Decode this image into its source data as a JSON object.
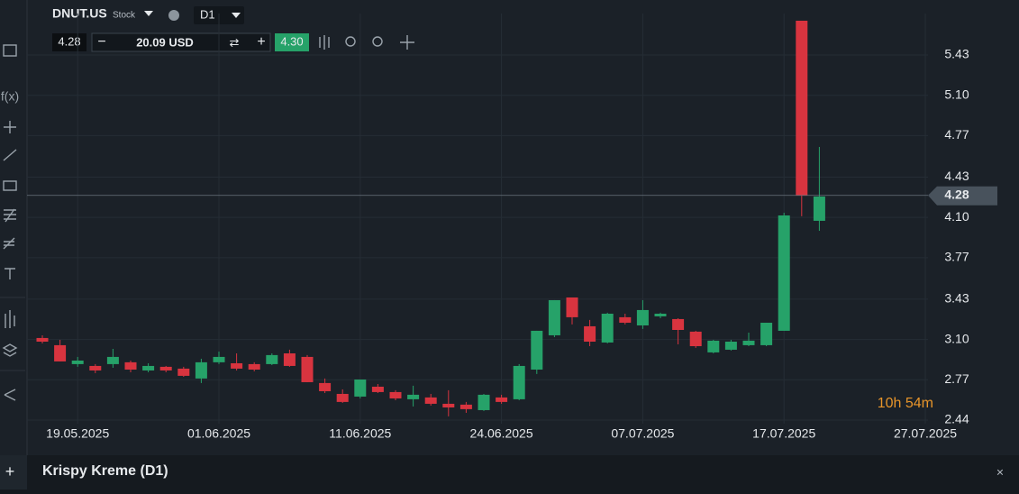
{
  "header": {
    "symbol": "DNUT.US",
    "asset_type": "Stock",
    "timeframe": "D1",
    "bid": "4.28",
    "quantity": "20.09 USD",
    "ask": "4.30"
  },
  "footer": {
    "title": "Krispy Kreme (D1)"
  },
  "chart_data": {
    "type": "candlestick",
    "open": [
      3.112,
      3.053,
      2.898,
      2.883,
      2.898,
      2.913,
      2.846,
      2.876,
      2.861,
      2.78,
      2.913,
      2.905,
      2.898,
      2.898,
      2.986,
      2.957,
      2.743,
      2.654,
      2.632,
      2.713,
      2.669,
      2.61,
      2.625,
      2.573,
      2.566,
      2.521,
      2.625,
      2.61,
      2.853,
      3.134,
      3.444,
      3.208,
      3.075,
      3.282,
      3.215,
      3.289,
      3.267,
      3.164,
      2.994,
      3.016,
      3.053,
      3.053,
      3.171,
      5.711,
      4.072
    ],
    "high": [
      3.134,
      3.097,
      2.957,
      2.898,
      3.023,
      2.927,
      2.905,
      2.883,
      2.876,
      2.942,
      3.001,
      2.986,
      2.913,
      2.986,
      3.016,
      2.972,
      2.78,
      2.691,
      2.772,
      2.735,
      2.684,
      2.721,
      2.654,
      2.684,
      2.588,
      2.654,
      2.647,
      2.898,
      3.171,
      3.422,
      3.444,
      3.26,
      3.319,
      3.311,
      3.422,
      3.319,
      3.274,
      3.171,
      3.097,
      3.097,
      3.156,
      3.237,
      4.138,
      5.711,
      4.677
    ],
    "low": [
      3.067,
      2.92,
      2.876,
      2.824,
      2.868,
      2.831,
      2.831,
      2.831,
      2.794,
      2.743,
      2.898,
      2.846,
      2.839,
      2.89,
      2.876,
      2.75,
      2.661,
      2.58,
      2.617,
      2.661,
      2.602,
      2.551,
      2.558,
      2.47,
      2.499,
      2.514,
      2.573,
      2.602,
      2.817,
      3.119,
      3.223,
      3.045,
      3.068,
      3.223,
      3.186,
      3.274,
      3.06,
      3.031,
      2.986,
      3.009,
      3.045,
      3.045,
      3.171,
      4.109,
      3.99
    ],
    "close": [
      3.082,
      2.92,
      2.927,
      2.846,
      2.957,
      2.853,
      2.883,
      2.846,
      2.802,
      2.913,
      2.957,
      2.861,
      2.853,
      2.972,
      2.883,
      2.75,
      2.676,
      2.588,
      2.772,
      2.669,
      2.617,
      2.647,
      2.573,
      2.543,
      2.529,
      2.647,
      2.588,
      2.883,
      3.171,
      3.422,
      3.282,
      3.082,
      3.311,
      3.237,
      3.341,
      3.311,
      3.178,
      3.045,
      3.09,
      3.082,
      3.09,
      3.237,
      4.116,
      4.278,
      4.271
    ],
    "up_color": "#26a269",
    "down_color": "#d8343f",
    "xlim": [
      -1,
      51
    ],
    "xticks": [
      {
        "value": 2,
        "label": "19.05.2025"
      },
      {
        "value": 10,
        "label": "01.06.2025"
      },
      {
        "value": 18,
        "label": "11.06.2025"
      },
      {
        "value": 26,
        "label": "24.06.2025"
      },
      {
        "value": 34,
        "label": "07.07.2025"
      },
      {
        "value": 42,
        "label": "17.07.2025"
      },
      {
        "value": 50,
        "label": "27.07.2025"
      }
    ],
    "ylim": [
      2.41,
      5.77
    ],
    "yticks": [
      5.43,
      {
        "value": 5.1,
        "label": "5.10"
      },
      4.77,
      4.43,
      {
        "value": 4.1,
        "label": "4.10"
      },
      3.77,
      3.43,
      {
        "value": 3.1,
        "label": "3.10"
      },
      2.77,
      2.44
    ],
    "grid": true,
    "last_price": 4.28,
    "countdown": "10h 54m"
  }
}
